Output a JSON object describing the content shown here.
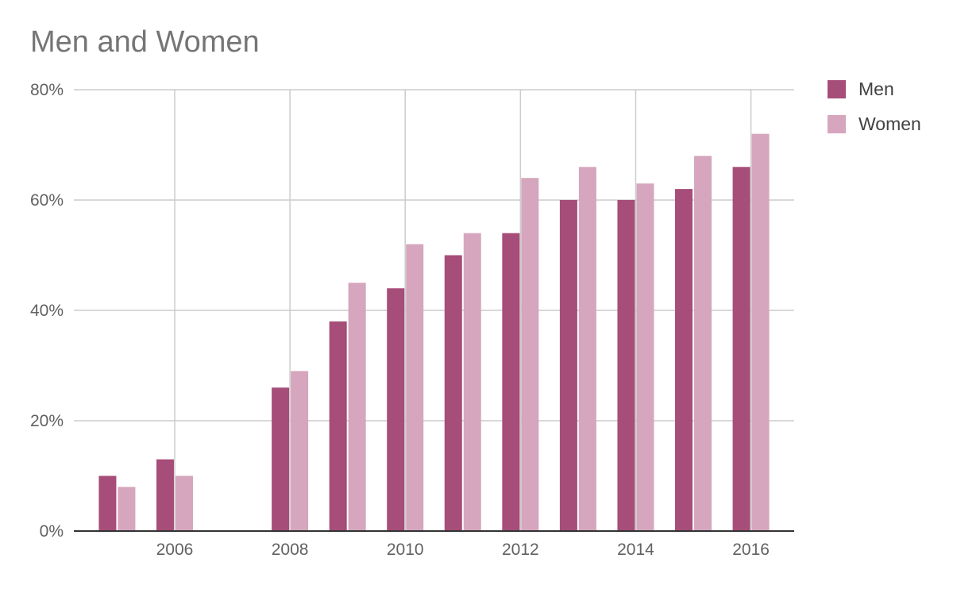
{
  "chart_data": {
    "type": "bar",
    "title": "Men and Women",
    "xlabel": "",
    "ylabel": "",
    "x": [
      2005,
      2006,
      2007,
      2008,
      2009,
      2010,
      2011,
      2012,
      2013,
      2014,
      2015,
      2016
    ],
    "series": [
      {
        "name": "Men",
        "color": "#a64d79",
        "values": [
          10,
          13,
          null,
          26,
          38,
          44,
          50,
          54,
          60,
          60,
          62,
          66
        ]
      },
      {
        "name": "Women",
        "color": "#d5a6bd",
        "values": [
          8,
          10,
          null,
          29,
          45,
          52,
          54,
          64,
          66,
          63,
          68,
          72
        ]
      }
    ],
    "xlim": [
      2004.25,
      2016.75
    ],
    "ylim": [
      0,
      80
    ],
    "y_ticks": [
      0,
      20,
      40,
      60,
      80
    ],
    "y_tick_labels": [
      "0%",
      "20%",
      "40%",
      "60%",
      "80%"
    ],
    "x_ticks": [
      2006,
      2008,
      2010,
      2012,
      2014,
      2016
    ],
    "x_tick_labels": [
      "2006",
      "2008",
      "2010",
      "2012",
      "2014",
      "2016"
    ],
    "grid": true,
    "legend_position": "top-right"
  }
}
